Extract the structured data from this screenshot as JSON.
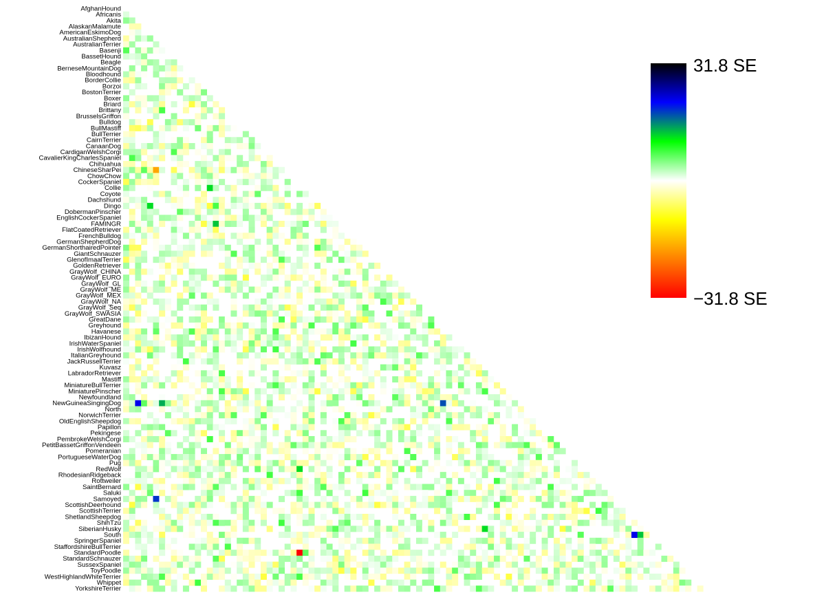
{
  "chart_data": {
    "type": "heatmap",
    "shape": "lower-triangle",
    "labels": [
      "AfghanHound",
      "Africanis",
      "Akita",
      "AlaskanMalamute",
      "AmericanEskimoDog",
      "AustralianShepherd",
      "AustralianTerrier",
      "Basenji",
      "BassetHound",
      "Beagle",
      "BerneseMountainDog",
      "Bloodhound",
      "BorderCollie",
      "Borzoi",
      "BostonTerrier",
      "Boxer",
      "Briard",
      "Brittany",
      "BrusselsGriffon",
      "Bulldog",
      "BullMastiff",
      "BullTerrier",
      "CairnTerrier",
      "CanaanDog",
      "CardiganWelshCorgi",
      "CavalierKingCharlesSpaniel",
      "Chihuahua",
      "ChineseSharPei",
      "ChowChow",
      "CockerSpaniel",
      "Collie",
      "Coyote",
      "Dachshund",
      "Dingo",
      "DobermanPinscher",
      "EnglishCockerSpaniel",
      "FAMINGR",
      "FlatCoatedRetriever",
      "FrenchBulldog",
      "GermanShepherdDog",
      "GermanShorthairedPointer",
      "GiantSchnauzer",
      "GlenofImaalTerrier",
      "GoldenRetriever",
      "GrayWolf_CHINA",
      "GrayWolf_EURO",
      "GrayWolf_GL",
      "GrayWolf_ME",
      "GrayWolf_MEX",
      "GrayWolf_NA",
      "GrayWolf_Seq",
      "GrayWolf_SWASIA",
      "GreatDane",
      "Greyhound",
      "Havanese",
      "IbizanHound",
      "IrishWaterSpaniel",
      "IrishWolfhound",
      "ItalianGreyhound",
      "JackRussellTerrier",
      "Kuvasz",
      "LabradorRetriever",
      "Mastiff",
      "MiniatureBullTerrier",
      "MiniaturePinscher",
      "Newfoundland",
      "NewGuineaSingingDog",
      "North",
      "NorwichTerrier",
      "OldEnglishSheepdog",
      "Papillon",
      "Pekingese",
      "PembrokeWelshCorgi",
      "PetitBassetGriffonVendeen",
      "Pomeranian",
      "PortugueseWaterDog",
      "Pug",
      "RedWolf",
      "RhodesianRidgeback",
      "Rottweiler",
      "SaintBernard",
      "Saluki",
      "Samoyed",
      "ScottishDeerhound",
      "ScottishTerrier",
      "ShetlandSheepdog",
      "ShihTzu",
      "SiberianHusky",
      "South",
      "SpringerSpaniel",
      "StaffordshireBullTerrier",
      "StandardPoodle",
      "StandardSchnauzer",
      "SussexSpaniel",
      "ToyPoodle",
      "WestHighlandWhiteTerrier",
      "Whippet",
      "YorkshireTerrier"
    ],
    "value_unit": "SE",
    "color_scale": {
      "max_label": "31.8 SE",
      "min_label": "−31.8 SE",
      "vmax": 31.8,
      "vmin": -31.8,
      "stops": [
        {
          "value": 31.8,
          "color": "#000000"
        },
        {
          "value": 21.2,
          "color": "#0000ff"
        },
        {
          "value": 10.6,
          "color": "#00ff00"
        },
        {
          "value": 0,
          "color": "#ffffff"
        },
        {
          "value": -10.6,
          "color": "#ffff00"
        },
        {
          "value": -21.2,
          "color": "#ff8000"
        },
        {
          "value": -31.8,
          "color": "#ff0000"
        }
      ]
    },
    "highlighted_cells": [
      {
        "row": "Bulldog",
        "col": "CockerSpaniel",
        "value": 14
      },
      {
        "row": "BullMastiff",
        "col": "FlatCoatedRetriever",
        "value": 22
      },
      {
        "row": "ChineseSharPei",
        "col": "CockerSpaniel",
        "value": 20
      },
      {
        "row": "ChineseSharPei",
        "col": "AustralianShepherd",
        "value": -18
      },
      {
        "row": "Collie",
        "col": "BostonTerrier",
        "value": 12
      },
      {
        "row": "Dingo",
        "col": "AmericanEskimoDog",
        "value": 12
      },
      {
        "row": "FAMINGR",
        "col": "Boxer",
        "value": 13
      },
      {
        "row": "FAMINGR",
        "col": "GrayWolf_CHINA",
        "value": -15
      },
      {
        "row": "GermanShepherdDog",
        "col": "Havanese",
        "value": 14
      },
      {
        "row": "GrayWolf_MEX",
        "col": "Samoyed",
        "value": 12
      },
      {
        "row": "GrayWolf_Seq",
        "col": "SaintBernard",
        "value": 12
      },
      {
        "row": "GrayWolf_SWASIA",
        "col": "Saluki",
        "value": 22
      },
      {
        "row": "IrishWolfhound",
        "col": "ScottishTerrier",
        "value": 12
      },
      {
        "row": "Mastiff",
        "col": "Mastiff",
        "value": -12
      },
      {
        "row": "NewGuineaSingingDog",
        "col": "Akita",
        "value": 22
      },
      {
        "row": "NewGuineaSingingDog",
        "col": "AustralianTerrier",
        "value": 14
      },
      {
        "row": "NewGuineaSingingDog",
        "col": "Greyhound",
        "value": 18
      },
      {
        "row": "North",
        "col": "ShetlandSheepdog",
        "value": 20
      },
      {
        "row": "North",
        "col": "Pekingese",
        "value": 12
      },
      {
        "row": "Pekingese",
        "col": "PortugueseWaterDog",
        "value": 12
      },
      {
        "row": "Pekingese",
        "col": "ShetlandSheepdog",
        "value": 12
      },
      {
        "row": "Pug",
        "col": "StaffordshireBullTerrier",
        "value": 12
      },
      {
        "row": "RedWolf",
        "col": "CockerSpaniel",
        "value": 12
      },
      {
        "row": "Samoyed",
        "col": "AustralianShepherd",
        "value": 19
      },
      {
        "row": "Samoyed",
        "col": "Whippet",
        "value": -12
      },
      {
        "row": "SiberianHusky",
        "col": "Kuvasz",
        "value": 12
      },
      {
        "row": "South",
        "col": "ShetlandSheepdog",
        "value": 22
      },
      {
        "row": "South",
        "col": "ShihTzu",
        "value": 13
      },
      {
        "row": "South",
        "col": "YorkshireTerrier",
        "value": -14
      },
      {
        "row": "StandardPoodle",
        "col": "CockerSpaniel",
        "value": -31.8
      }
    ],
    "title": "",
    "xlabel": "",
    "ylabel": "",
    "legend_position": "right",
    "grid": false
  },
  "colors": {
    "background": "#ffffff",
    "text": "#000000"
  }
}
